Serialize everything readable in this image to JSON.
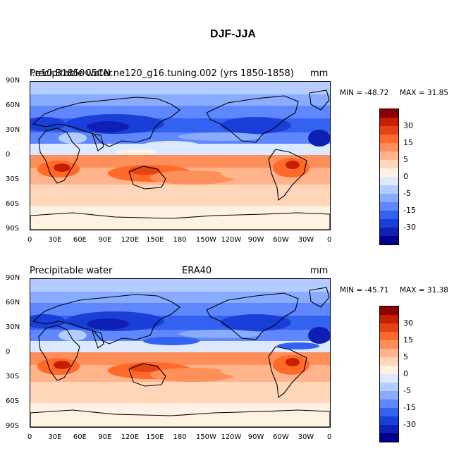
{
  "figure_title": "DJF-JJA",
  "panels": [
    {
      "left_label": "Precipitable water",
      "overlap_label": "f.e10.B1850C5CN.ne120_g16.tuning.002 (yrs 1850-1858)",
      "center_label": "",
      "unit": "mm",
      "min_label": "MIN = -48.72",
      "max_label": "MAX =  31.85"
    },
    {
      "left_label": "Precipitable water",
      "overlap_label": "",
      "center_label": "ERA40",
      "unit": "mm",
      "min_label": "MIN = -45.71",
      "max_label": "MAX =  31.38"
    }
  ],
  "lat_ticks": [
    "90N",
    "60N",
    "30N",
    "0",
    "30S",
    "60S",
    "90S"
  ],
  "lon_ticks": [
    "0",
    "30E",
    "60E",
    "90E",
    "120E",
    "150E",
    "180",
    "150W",
    "120W",
    "90W",
    "60W",
    "30W",
    "0"
  ],
  "colorbar": {
    "colors": [
      "#8b0000",
      "#c81e00",
      "#e64314",
      "#ff6a2a",
      "#ff8f5a",
      "#ffb48c",
      "#ffd6b8",
      "#fff2e2",
      "#dde9ff",
      "#b4ccff",
      "#8aacff",
      "#5f88ff",
      "#3462f0",
      "#1a3fd8",
      "#0e20b4",
      "#00008c"
    ],
    "labels": [
      "30",
      "15",
      "5",
      "0",
      "-5",
      "-15",
      "-30"
    ]
  },
  "chart_data": {
    "type": "heatmap",
    "title": "DJF-JJA",
    "variable": "Precipitable water",
    "unit": "mm",
    "x_ticks": [
      "0",
      "30E",
      "60E",
      "90E",
      "120E",
      "150E",
      "180",
      "150W",
      "120W",
      "90W",
      "60W",
      "30W",
      "0"
    ],
    "y_ticks": [
      "90N",
      "60N",
      "30N",
      "0",
      "30S",
      "60S",
      "90S"
    ],
    "xlim": [
      0,
      360
    ],
    "ylim": [
      -90,
      90
    ],
    "color_levels": [
      -30,
      -15,
      -5,
      0,
      5,
      15,
      30
    ],
    "panels": [
      {
        "name": "f.e10.B1850C5CN.ne120_g16.tuning.002 (yrs 1850-1858)",
        "min": -48.72,
        "max": 31.85
      },
      {
        "name": "ERA40",
        "min": -45.71,
        "max": 31.38
      }
    ]
  }
}
